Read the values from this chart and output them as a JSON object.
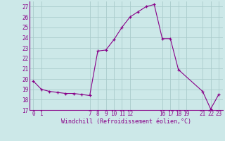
{
  "x": [
    0,
    1,
    2,
    3,
    4,
    5,
    6,
    7,
    8,
    9,
    10,
    11,
    12,
    13,
    14,
    15,
    16,
    17,
    18,
    21,
    22,
    23
  ],
  "y": [
    19.8,
    19.0,
    18.8,
    18.7,
    18.6,
    18.6,
    18.5,
    18.4,
    22.7,
    22.8,
    23.8,
    25.0,
    26.0,
    26.5,
    27.0,
    27.2,
    23.9,
    23.9,
    20.9,
    18.8,
    17.1,
    18.5
  ],
  "xlabel": "Windchill (Refroidissement éolien,°C)",
  "xlim": [
    -0.5,
    23.5
  ],
  "ylim": [
    17,
    27.5
  ],
  "yticks": [
    17,
    18,
    19,
    20,
    21,
    22,
    23,
    24,
    25,
    26,
    27
  ],
  "xticks": [
    0,
    1,
    7,
    8,
    9,
    10,
    11,
    12,
    16,
    17,
    18,
    19,
    21,
    22,
    23
  ],
  "line_color": "#880088",
  "marker": "+",
  "bg_color": "#cce8e8",
  "grid_color": "#aacccc",
  "font_color": "#880088",
  "tick_fontsize": 5.5,
  "xlabel_fontsize": 6.0
}
